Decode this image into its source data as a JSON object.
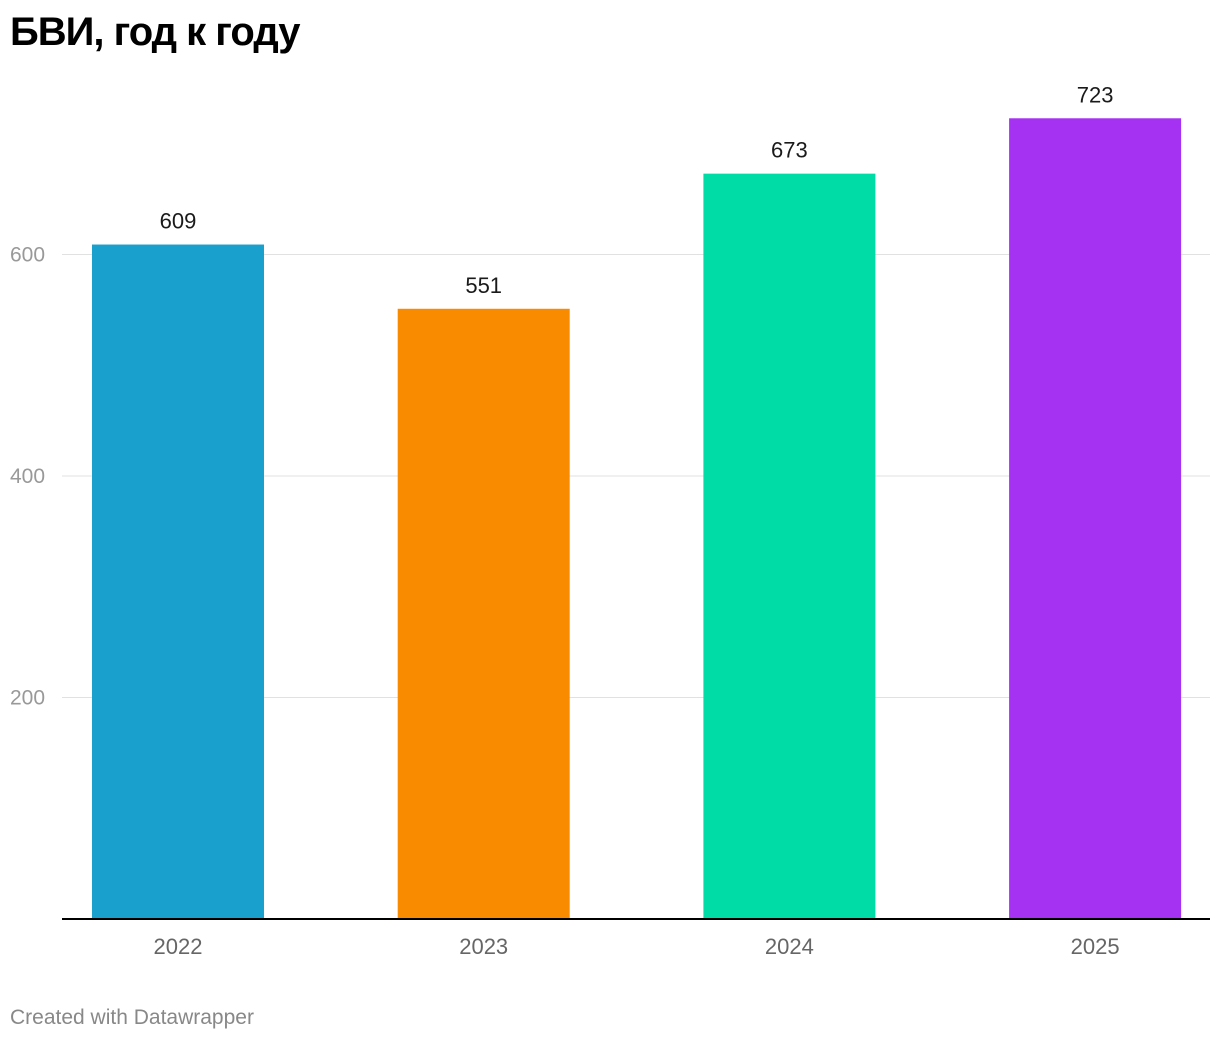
{
  "title": "БВИ, год к году",
  "footer": "Created with Datawrapper",
  "chart_data": {
    "type": "bar",
    "title": "БВИ, год к году",
    "xlabel": "",
    "ylabel": "",
    "categories": [
      "2022",
      "2023",
      "2024",
      "2025"
    ],
    "values": [
      609,
      551,
      673,
      723
    ],
    "colors": [
      "#1aa0cc",
      "#f98b00",
      "#00dca6",
      "#a532f2"
    ],
    "yticks": [
      200,
      400,
      600
    ],
    "ylim": [
      0,
      800
    ],
    "grid": true,
    "legend": "none",
    "data_labels": true
  },
  "colors": {
    "gridline": "#e1e1e1",
    "baseline": "#000000",
    "tick_label": "#999999",
    "x_label": "#666666",
    "value_label": "#1a1a1a"
  }
}
